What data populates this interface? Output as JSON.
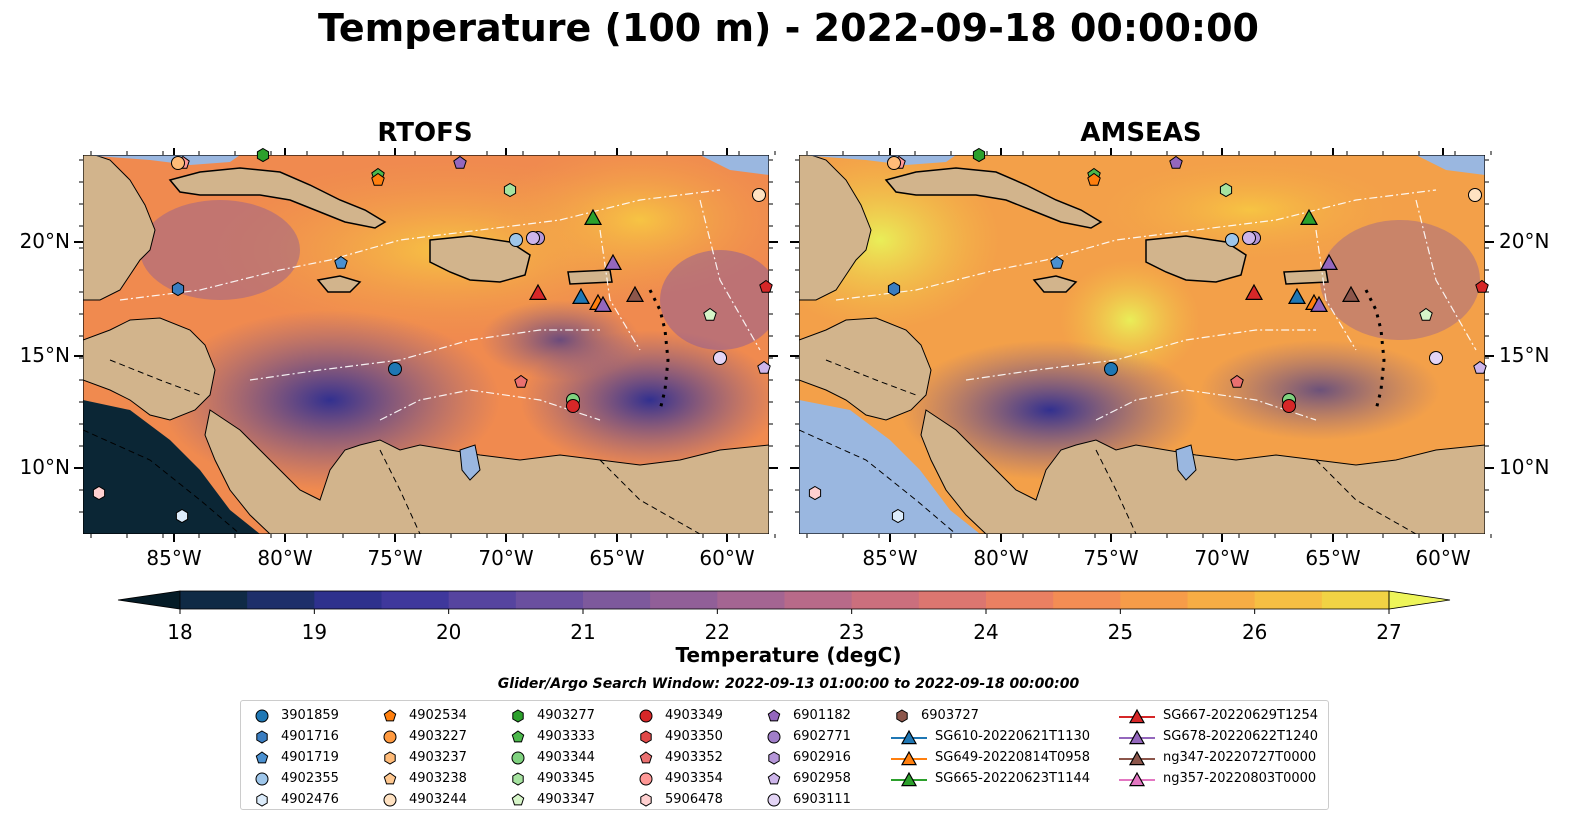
{
  "title": "Temperature (100 m) - 2022-09-18 00:00:00",
  "panels": [
    {
      "title": "RTOFS"
    },
    {
      "title": "AMSEAS"
    }
  ],
  "axes": {
    "lat_ticks": [
      "20°N",
      "15°N",
      "10°N"
    ],
    "lon_ticks": [
      "85°W",
      "80°W",
      "75°W",
      "70°W",
      "65°W",
      "60°W"
    ]
  },
  "colorbar": {
    "label": "Temperature (degC)",
    "ticks": [
      "18",
      "19",
      "20",
      "21",
      "22",
      "23",
      "24",
      "25",
      "26",
      "27"
    ],
    "range": [
      18,
      27
    ]
  },
  "colors": {
    "land": "#d2b48c",
    "ocean": "#9ab7e0",
    "contour": "#ffffff"
  },
  "search_window": "Glider/Argo Search Window: 2022-09-13 01:00:00 to 2022-09-18 00:00:00",
  "legend": {
    "columns": [
      [
        {
          "label": "3901859",
          "marker": "circle",
          "color": "#1f77b4"
        },
        {
          "label": "4901716",
          "marker": "hexagon",
          "color": "#3a7dc0"
        },
        {
          "label": "4901719",
          "marker": "pentagon",
          "color": "#4a90d0"
        },
        {
          "label": "4902355",
          "marker": "circle",
          "color": "#9ec6ea"
        },
        {
          "label": "4902476",
          "marker": "hexagon",
          "color": "#dcecfb"
        }
      ],
      [
        {
          "label": "4902534",
          "marker": "pentagon",
          "color": "#ff7f0e"
        },
        {
          "label": "4903227",
          "marker": "circle",
          "color": "#ff9a40"
        },
        {
          "label": "4903237",
          "marker": "hexagon",
          "color": "#ffbb78"
        },
        {
          "label": "4903238",
          "marker": "pentagon",
          "color": "#ffc890"
        },
        {
          "label": "4903244",
          "marker": "circle",
          "color": "#ffe2c2"
        }
      ],
      [
        {
          "label": "4903277",
          "marker": "hexagon",
          "color": "#2ca02c"
        },
        {
          "label": "4903333",
          "marker": "pentagon",
          "color": "#4cb84c"
        },
        {
          "label": "4903344",
          "marker": "circle",
          "color": "#7fd27f"
        },
        {
          "label": "4903345",
          "marker": "hexagon",
          "color": "#a6e3a0"
        },
        {
          "label": "4903347",
          "marker": "pentagon",
          "color": "#d6f5c8"
        }
      ],
      [
        {
          "label": "4903349",
          "marker": "circle",
          "color": "#d62728"
        },
        {
          "label": "4903350",
          "marker": "hexagon",
          "color": "#e04848"
        },
        {
          "label": "4903352",
          "marker": "pentagon",
          "color": "#ea7070"
        },
        {
          "label": "4903354",
          "marker": "circle",
          "color": "#ff9896"
        },
        {
          "label": "5906478",
          "marker": "hexagon",
          "color": "#ffd0d0"
        }
      ],
      [
        {
          "label": "6901182",
          "marker": "pentagon",
          "color": "#9467bd"
        },
        {
          "label": "6902771",
          "marker": "circle",
          "color": "#a07ec8"
        },
        {
          "label": "6902916",
          "marker": "hexagon",
          "color": "#b596d8"
        },
        {
          "label": "6902958",
          "marker": "pentagon",
          "color": "#cdb5ea"
        },
        {
          "label": "6903111",
          "marker": "circle",
          "color": "#e3d4f5"
        }
      ],
      [
        {
          "label": "6903727",
          "marker": "hexagon",
          "color": "#8c564b"
        },
        {
          "label": "SG610-20220621T1130",
          "marker": "triangle-line",
          "color": "#1f77b4"
        },
        {
          "label": "SG649-20220814T0958",
          "marker": "triangle-line",
          "color": "#ff7f0e"
        },
        {
          "label": "SG665-20220623T1144",
          "marker": "triangle-line",
          "color": "#2ca02c"
        }
      ],
      [
        {
          "label": "SG667-20220629T1254",
          "marker": "triangle-line",
          "color": "#d62728"
        },
        {
          "label": "SG678-20220622T1240",
          "marker": "triangle-line",
          "color": "#9467bd"
        },
        {
          "label": "ng347-20220727T0000",
          "marker": "triangle-line",
          "color": "#8c564b"
        },
        {
          "label": "ng357-20220803T0000",
          "marker": "triangle-line",
          "color": "#e377c2"
        }
      ]
    ]
  }
}
